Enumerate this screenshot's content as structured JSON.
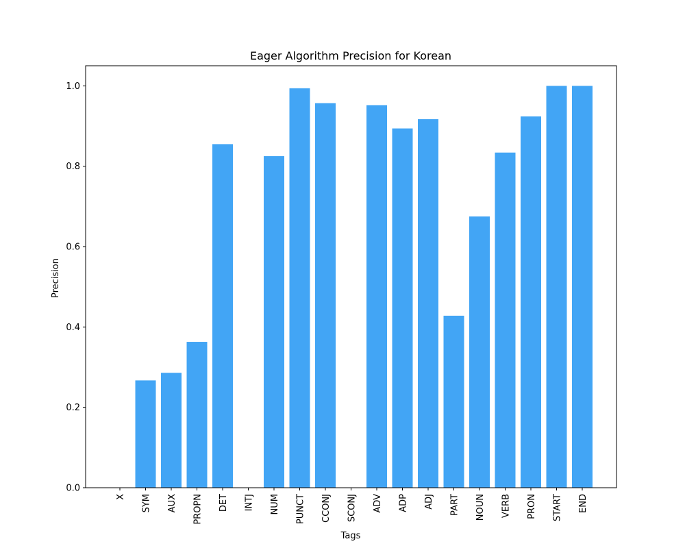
{
  "chart_data": {
    "type": "bar",
    "title": "Eager Algorithm Precision for Korean",
    "xlabel": "Tags",
    "ylabel": "Precision",
    "ylim": [
      0.0,
      1.05
    ],
    "yticks": [
      "0.0",
      "0.2",
      "0.4",
      "0.6",
      "0.8",
      "1.0"
    ],
    "ytick_values": [
      0.0,
      0.2,
      0.4,
      0.6,
      0.8,
      1.0
    ],
    "grid": false,
    "bar_color": "#42a5f5",
    "categories": [
      "X",
      "SYM",
      "AUX",
      "PROPN",
      "DET",
      "INTJ",
      "NUM",
      "PUNCT",
      "CCONJ",
      "SCONJ",
      "ADV",
      "ADP",
      "ADJ",
      "PART",
      "NOUN",
      "VERB",
      "PRON",
      "START",
      "END"
    ],
    "values": [
      0.0,
      0.267,
      0.286,
      0.363,
      0.855,
      0.0,
      0.825,
      0.994,
      0.957,
      0.0,
      0.952,
      0.894,
      0.917,
      0.428,
      0.675,
      0.834,
      0.924,
      1.0,
      1.0
    ]
  }
}
